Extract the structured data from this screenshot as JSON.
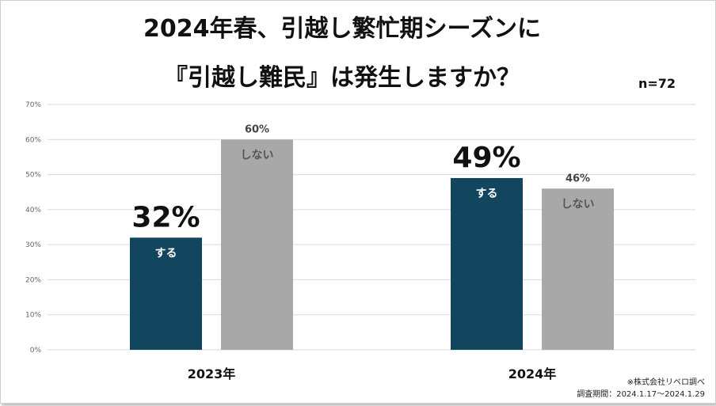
{
  "title": {
    "line1": "2024年春、引越し繁忙期シーズンに",
    "line2": "『引越し難民』は発生しますか？"
  },
  "sample_size": "n=72",
  "footnotes": {
    "source": "※株式会社リベロ調べ",
    "period": "調査期間：2024.1.17～2024.1.29"
  },
  "colors": {
    "yes": "#12455e",
    "no": "#a8a8a8",
    "grid": "#d9d9d9"
  },
  "chart_data": {
    "type": "bar",
    "title": "2024年春、引越し繁忙期シーズンに『引越し難民』は発生しますか？",
    "categories": [
      "2023年",
      "2024年"
    ],
    "series": [
      {
        "name": "する",
        "values": [
          32,
          49
        ],
        "labels": [
          "32%",
          "49%"
        ]
      },
      {
        "name": "しない",
        "values": [
          60,
          46
        ],
        "labels": [
          "60%",
          "46%"
        ]
      }
    ],
    "yticks": [
      "0%",
      "10%",
      "20%",
      "30%",
      "40%",
      "50%",
      "60%",
      "70%"
    ],
    "ylim": [
      0,
      70
    ],
    "grid": true
  }
}
